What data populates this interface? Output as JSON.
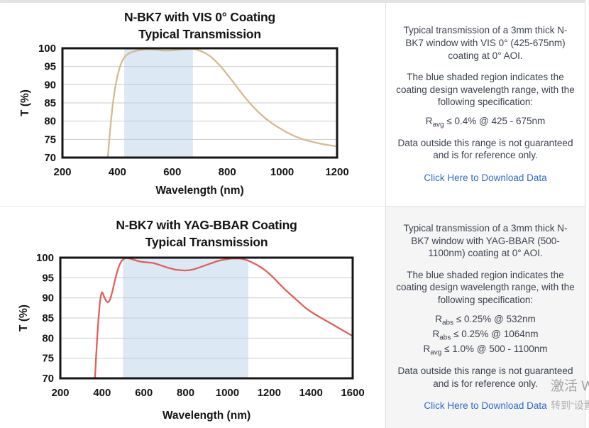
{
  "colors": {
    "link": "#2d6bce",
    "curve_vis": "#d6ba8e",
    "curve_yag": "#e0605a",
    "shaded_band": "#dce8f4",
    "gridline": "#cbcbcb",
    "plot_border": "#151515",
    "body_text": "#3c4250",
    "bottom_cell_bg": "#f5f5f5"
  },
  "panels": [
    {
      "name": "vis-0-coating",
      "paragraphs": {
        "p1": "Typical transmission of a 3mm thick N-BK7 window with VIS 0° (425-675nm) coating at 0° AOI.",
        "p2": "The blue shaded region indicates the coating design wavelength range, with the following specification:",
        "p3": "Data outside this range is not guaranteed and is for reference only."
      },
      "specs": [
        {
          "base": "R",
          "sub": "avg",
          "rest": " ≤ 0.4% @ 425 - 675nm"
        }
      ],
      "link_label": "Click Here to Download Data"
    },
    {
      "name": "yag-bbar-coating",
      "paragraphs": {
        "p1": "Typical transmission of a 3mm thick N-BK7 window with YAG-BBAR (500-1100nm) coating at 0° AOI.",
        "p2": "The blue shaded region indicates the coating design wavelength range, with the following specification:",
        "p3": "Data outside this range is not guaranteed and is for reference only."
      },
      "specs": [
        {
          "base": "R",
          "sub": "abs",
          "rest": " ≤ 0.25% @ 532nm"
        },
        {
          "base": "R",
          "sub": "abs",
          "rest": " ≤ 0.25% @ 1064nm"
        },
        {
          "base": "R",
          "sub": "avg",
          "rest": " ≤ 1.0% @ 500 - 1100nm"
        }
      ],
      "link_label": "Click Here to Download Data"
    }
  ],
  "chart_data": [
    {
      "type": "line",
      "title": "N-BK7 with VIS 0° Coating",
      "subtitle": "Typical Transmission",
      "xlabel": "Wavelength (nm)",
      "ylabel": "T (%)",
      "xlim": [
        200,
        1200
      ],
      "ylim": [
        70,
        100
      ],
      "xticks": [
        200,
        400,
        600,
        800,
        1000,
        1200
      ],
      "yticks": [
        70,
        75,
        80,
        85,
        90,
        95,
        100
      ],
      "grid": "horizontal",
      "legend": "none",
      "shaded_region": {
        "x0": 425,
        "x1": 675,
        "meaning": "coating design wavelength range"
      },
      "series": [
        {
          "name": "Transmission",
          "points": [
            [
              365,
              70
            ],
            [
              370,
              74.5
            ],
            [
              376,
              79.5
            ],
            [
              383,
              84.5
            ],
            [
              391,
              88.8
            ],
            [
              400,
              92.3
            ],
            [
              409,
              94.9
            ],
            [
              418,
              96.6
            ],
            [
              428,
              97.8
            ],
            [
              440,
              98.5
            ],
            [
              455,
              99.0
            ],
            [
              472,
              99.4
            ],
            [
              492,
              99.6
            ],
            [
              515,
              99.7
            ],
            [
              540,
              99.6
            ],
            [
              565,
              99.4
            ],
            [
              590,
              99.4
            ],
            [
              615,
              99.5
            ],
            [
              640,
              99.7
            ],
            [
              665,
              99.8
            ],
            [
              685,
              99.7
            ],
            [
              705,
              99.2
            ],
            [
              722,
              98.6
            ],
            [
              740,
              97.7
            ],
            [
              760,
              96.3
            ],
            [
              780,
              94.7
            ],
            [
              800,
              92.8
            ],
            [
              822,
              90.7
            ],
            [
              845,
              88.4
            ],
            [
              868,
              86.2
            ],
            [
              892,
              84.1
            ],
            [
              916,
              82.3
            ],
            [
              940,
              80.7
            ],
            [
              965,
              79.3
            ],
            [
              990,
              78.1
            ],
            [
              1015,
              77.0
            ],
            [
              1045,
              75.9
            ],
            [
              1075,
              75.0
            ],
            [
              1105,
              74.4
            ],
            [
              1140,
              73.8
            ],
            [
              1170,
              73.4
            ],
            [
              1200,
              73.1
            ]
          ]
        }
      ]
    },
    {
      "type": "line",
      "title": "N-BK7 with YAG-BBAR Coating",
      "subtitle": "Typical Transmission",
      "xlabel": "Wavelength (nm)",
      "ylabel": "T (%)",
      "xlim": [
        200,
        1600
      ],
      "ylim": [
        70,
        100
      ],
      "xticks": [
        200,
        400,
        600,
        800,
        1000,
        1200,
        1400,
        1600
      ],
      "yticks": [
        70,
        75,
        80,
        85,
        90,
        95,
        100
      ],
      "grid": "horizontal",
      "legend": "none",
      "shaded_region": {
        "x0": 500,
        "x1": 1100,
        "meaning": "coating design wavelength range"
      },
      "series": [
        {
          "name": "Transmission",
          "points": [
            [
              366,
              70
            ],
            [
              371,
              75
            ],
            [
              377,
              80.5
            ],
            [
              383,
              85
            ],
            [
              389,
              88.6
            ],
            [
              394,
              90.6
            ],
            [
              399,
              91.4
            ],
            [
              404,
              91.1
            ],
            [
              411,
              90.1
            ],
            [
              419,
              89.3
            ],
            [
              426,
              88.9
            ],
            [
              433,
              89.1
            ],
            [
              441,
              90.0
            ],
            [
              450,
              91.8
            ],
            [
              460,
              94.0
            ],
            [
              471,
              96.3
            ],
            [
              483,
              98.2
            ],
            [
              495,
              99.3
            ],
            [
              508,
              99.8
            ],
            [
              522,
              99.9
            ],
            [
              538,
              99.7
            ],
            [
              556,
              99.4
            ],
            [
              576,
              99.1
            ],
            [
              598,
              98.9
            ],
            [
              620,
              98.8
            ],
            [
              642,
              98.7
            ],
            [
              664,
              98.4
            ],
            [
              686,
              98.0
            ],
            [
              708,
              97.6
            ],
            [
              730,
              97.3
            ],
            [
              752,
              97.0
            ],
            [
              774,
              96.9
            ],
            [
              796,
              96.8
            ],
            [
              818,
              96.9
            ],
            [
              840,
              97.1
            ],
            [
              862,
              97.5
            ],
            [
              884,
              97.9
            ],
            [
              906,
              98.3
            ],
            [
              928,
              98.7
            ],
            [
              950,
              99.1
            ],
            [
              972,
              99.4
            ],
            [
              994,
              99.6
            ],
            [
              1016,
              99.75
            ],
            [
              1040,
              99.8
            ],
            [
              1062,
              99.75
            ],
            [
              1080,
              99.6
            ],
            [
              1098,
              99.3
            ],
            [
              1118,
              98.8
            ],
            [
              1138,
              98.3
            ],
            [
              1158,
              97.7
            ],
            [
              1180,
              96.9
            ],
            [
              1205,
              95.8
            ],
            [
              1232,
              94.4
            ],
            [
              1260,
              92.9
            ],
            [
              1288,
              91.5
            ],
            [
              1316,
              90.2
            ],
            [
              1344,
              88.9
            ],
            [
              1372,
              87.6
            ],
            [
              1398,
              86.6
            ],
            [
              1430,
              85.6
            ],
            [
              1460,
              84.7
            ],
            [
              1490,
              83.8
            ],
            [
              1520,
              82.9
            ],
            [
              1550,
              82.0
            ],
            [
              1580,
              81.1
            ],
            [
              1600,
              80.5
            ]
          ]
        }
      ]
    }
  ],
  "watermark": {
    "line1": "激活 W",
    "line2": "转到“设置"
  }
}
